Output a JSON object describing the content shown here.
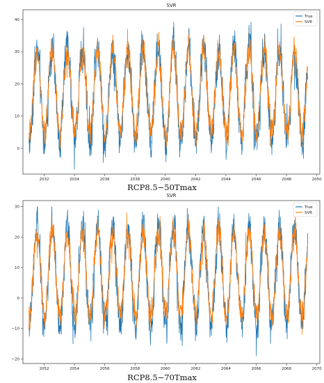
{
  "chart_data": [
    {
      "type": "line",
      "title": "SVR",
      "xlabel": "",
      "ylabel": "",
      "x_range": [
        2030.6,
        2050.2
      ],
      "ylim": [
        -8,
        43
      ],
      "x_ticks": [
        "2032",
        "2034",
        "2036",
        "2038",
        "2040",
        "2042",
        "2044",
        "2046",
        "2048",
        "2050"
      ],
      "y_ticks": [
        "0",
        "10",
        "20",
        "30",
        "40"
      ],
      "x_start": 2031.0,
      "x_end": 2049.4,
      "series": [
        {
          "name": "True",
          "color": "#1f77b4",
          "mean": 17,
          "amplitude": 14.5,
          "noise": 5.5,
          "peak_max": 42,
          "trough_min": -6.5
        },
        {
          "name": "SVR",
          "color": "#ff7f0e",
          "mean": 17.5,
          "amplitude": 13,
          "noise": 3.8,
          "peak_max": 37,
          "trough_min": 0
        }
      ],
      "legend_position": "top-right",
      "caption": "RCP8.5−50Tmax"
    },
    {
      "type": "line",
      "title": "SVR",
      "xlabel": "",
      "ylabel": "",
      "x_range": [
        2050.6,
        2070.2
      ],
      "ylim": [
        -21.5,
        32
      ],
      "x_ticks": [
        "2052",
        "2054",
        "2056",
        "2058",
        "2060",
        "2062",
        "2064",
        "2066",
        "2068",
        "2070"
      ],
      "y_ticks": [
        "−20",
        "−10",
        "0",
        "10",
        "20",
        "30"
      ],
      "x_start": 2051.0,
      "x_end": 2069.4,
      "series": [
        {
          "name": "True",
          "color": "#1f77b4",
          "mean": 7.5,
          "amplitude": 16,
          "noise": 5.5,
          "peak_max": 30,
          "trough_min": -19
        },
        {
          "name": "SVR",
          "color": "#ff7f0e",
          "mean": 8,
          "amplitude": 14,
          "noise": 4.0,
          "peak_max": 29,
          "trough_min": -12
        }
      ],
      "legend_position": "top-right",
      "caption": "RCP8.5−70Tmax"
    }
  ]
}
